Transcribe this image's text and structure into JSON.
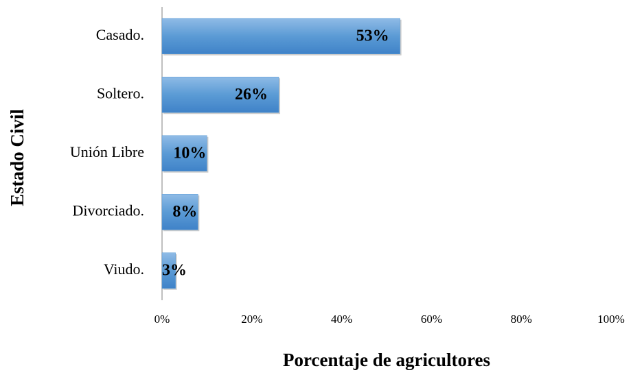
{
  "chart_data": {
    "type": "bar",
    "orientation": "horizontal",
    "xlabel": "Porcentaje de agricultores",
    "ylabel": "Estado Civil",
    "categories": [
      "Casado.",
      "Soltero.",
      "Unión Libre",
      "Divorciado.",
      "Viudo."
    ],
    "values": [
      53,
      26,
      10,
      8,
      3
    ],
    "value_labels": [
      "53%",
      "26%",
      "10%",
      "8%",
      "3%"
    ],
    "color": "#5b9bd5",
    "xlim": [
      0,
      100
    ],
    "xticks": [
      {
        "value": 0,
        "label": "0%"
      },
      {
        "value": 20,
        "label": "20%"
      },
      {
        "value": 40,
        "label": "40%"
      },
      {
        "value": 60,
        "label": "60%"
      },
      {
        "value": 80,
        "label": "80%"
      },
      {
        "value": 100,
        "label": "100%"
      }
    ],
    "grid": false
  }
}
